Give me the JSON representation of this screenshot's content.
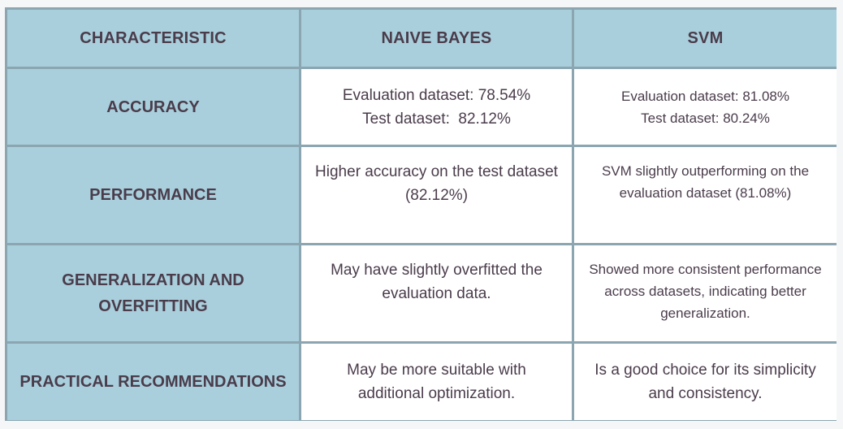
{
  "table": {
    "headers": [
      "CHARACTERISTIC",
      "NAIVE BAYES",
      "SVM"
    ],
    "rows": [
      {
        "characteristic": "ACCURACY",
        "naive_bayes": [
          "Evaluation dataset: 78.54%",
          "Test dataset:  82.12%"
        ],
        "svm": [
          "Evaluation dataset: 81.08%",
          "Test dataset: 80.24%"
        ]
      },
      {
        "characteristic": "PERFORMANCE",
        "naive_bayes": "Higher accuracy on the test dataset (82.12%)",
        "svm": "SVM slightly outperforming on the evaluation dataset (81.08%)"
      },
      {
        "characteristic": "GENERALIZATION AND OVERFITTING",
        "naive_bayes": "May have slightly overfitted the evaluation data.",
        "svm": "Showed more consistent performance across datasets, indicating better generalization."
      },
      {
        "characteristic": "PRACTICAL RECOMMENDATIONS",
        "naive_bayes": "May be more suitable with additional optimization.",
        "svm": "Is a good choice for its simplicity and consistency."
      }
    ]
  },
  "colors": {
    "header_bg": "#a9cfdc",
    "border": "#8ba6b1",
    "cell_bg": "#ffffff",
    "text": "#4a3c4b"
  }
}
